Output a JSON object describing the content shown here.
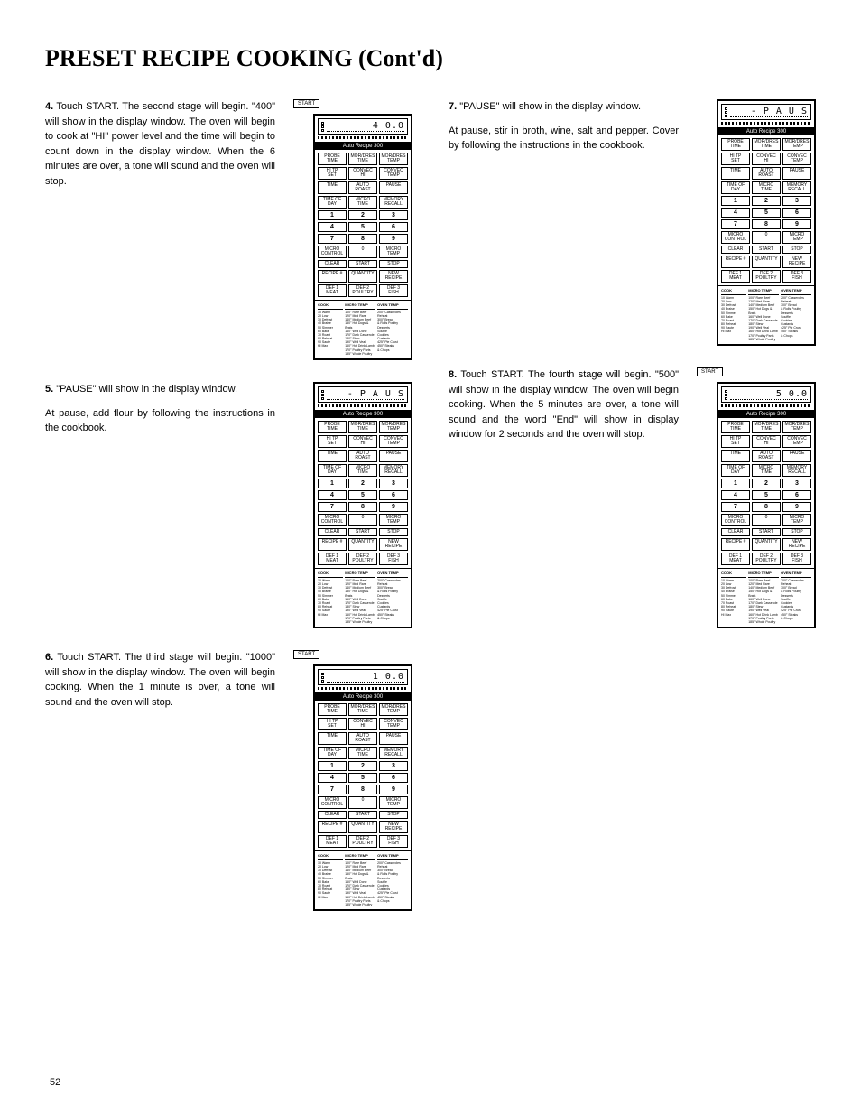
{
  "title": "PRESET RECIPE COOKING (Cont'd)",
  "page_number": "52",
  "recipe_bar": "Auto  Recipe  300",
  "start_label": "START",
  "steps": {
    "s4": {
      "num": "4.",
      "text": "Touch START.\nThe second stage will begin. \"400\" will show in the display window. The oven will begin to cook at \"HI\" power level and the time will begin to count down in the display window. When the 6 minutes are over, a tone will sound and the oven will stop.",
      "display": "4 0.0",
      "has_start": true
    },
    "s5": {
      "num": "5.",
      "text": "\"PAUSE\" will show in the display window.",
      "sub": "At pause, add flour by following the instructions in the cookbook.",
      "display": "- P A  U S",
      "has_start": false
    },
    "s6": {
      "num": "6.",
      "text": "Touch START.\nThe third stage will begin. \"1000\" will show in the display window.\nThe oven will begin cooking. When the 1 minute is over, a tone will sound and the oven will stop.",
      "display": "1 0.0",
      "has_start": true
    },
    "s7": {
      "num": "7.",
      "text": "\"PAUSE\" will show in the display window.",
      "sub": "At pause, stir in broth, wine, salt and pepper. Cover by following the instructions in the cookbook.",
      "display": "- P A  U S",
      "has_start": false
    },
    "s8": {
      "num": "8.",
      "text": "Touch START.\nThe fourth stage will begin. \"500\" will show in the display window. The oven will begin cooking. When the 5 minutes are over, a tone will sound and the word \"End\" will show in display window for 2 seconds and the oven will stop.",
      "display": "5  0.0",
      "has_start": true
    }
  },
  "panel_buttons_row1": [
    "PROBE\\nTIME",
    "MOR/DRES\\nTIME",
    "MOR/DRES\\nTEMP"
  ],
  "panel_buttons_row2": [
    "HI TP\\nSET",
    "CONVEC\\nHI",
    "CONVEC\\nTEMP"
  ],
  "panel_buttons_row3": [
    "TIME",
    "AUTO\\nROAST",
    "PAUSE"
  ],
  "panel_buttons_row4": [
    "TIME OF\\nDAY",
    "MICRO\\nTIME",
    "MEMORY\\nRECALL"
  ],
  "panel_nums_r1": [
    "1",
    "2",
    "3"
  ],
  "panel_nums_r2": [
    "4",
    "5",
    "6"
  ],
  "panel_nums_r3": [
    "7",
    "8",
    "9"
  ],
  "panel_buttons_row8": [
    "MICRO\\nCONTROL",
    "0",
    "MICRO\\nTEMP"
  ],
  "panel_buttons_row9": [
    "CLEAR",
    "START",
    "STOP"
  ],
  "panel_buttons_row10": [
    "RECIPE #",
    "QUANTITY",
    "NEW\\nRECIPE"
  ],
  "panel_buttons_row11": [
    "DEF 1\\nMEAT",
    "DEF 2\\nPOULTRY",
    "DEF 3\\nFISH"
  ],
  "info_headers": [
    "COOK",
    "MICRO TEMP",
    "OVEN TEMP"
  ],
  "info_col1": [
    "10 Warm",
    "20 Low",
    "30 Defrost",
    "40 Braise",
    "50 Simmer",
    "60 Bake",
    "70 Roast",
    "80 Reheat",
    "90 Saute",
    "HI Max"
  ],
  "info_col2": [
    "100° Rare Beef",
    "120° Med Rare",
    "140° Medium Beef",
    "150° Hot Dogs & Brats",
    "160° Well Done",
    "170° Dark Casserole",
    "180° Stew",
    "190° Well Veal",
    "160° Hot Drink Lamb",
    "170° Poultry Parts",
    "185° Whole Poultry"
  ],
  "info_col3": [
    "200° Casseroles",
    "Reheat",
    "300° Bread",
    "& Rolls Poultry",
    "Desserts",
    "Souffle",
    "Cookies",
    "Custards",
    "425° Pie Crust",
    "450° Steaks",
    "& Chops"
  ]
}
